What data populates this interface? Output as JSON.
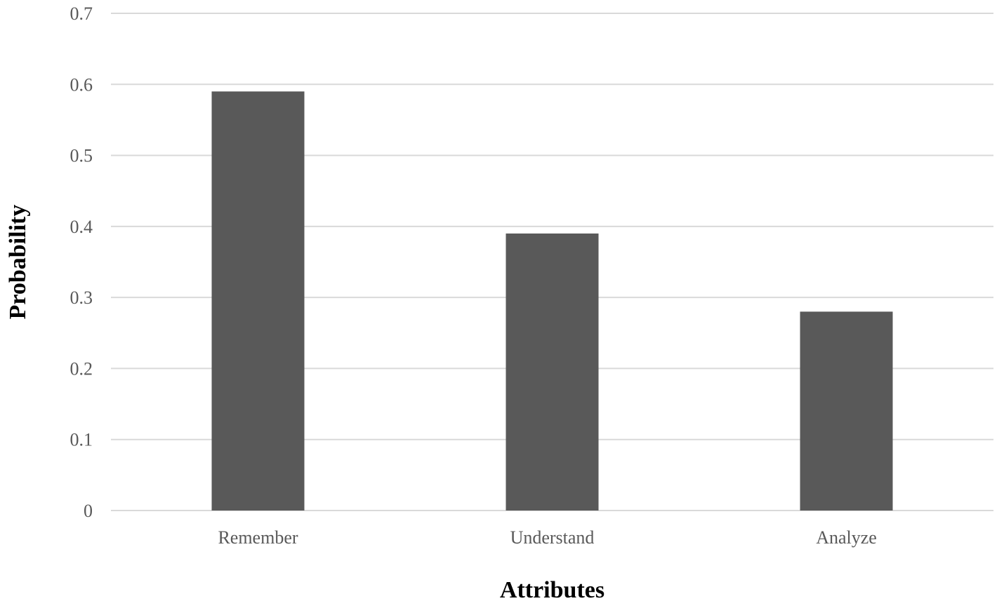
{
  "chart_data": {
    "type": "bar",
    "categories": [
      "Remember",
      "Understand",
      "Analyze"
    ],
    "values": [
      0.59,
      0.39,
      0.28
    ],
    "xlabel": "Attributes",
    "ylabel": "Probability",
    "ylim": [
      0,
      0.7
    ],
    "yticks": [
      "0",
      "0.1",
      "0.2",
      "0.3",
      "0.4",
      "0.5",
      "0.6",
      "0.7"
    ],
    "grid": true,
    "bar_color": "#595959",
    "grid_color": "#d9d9d9"
  }
}
